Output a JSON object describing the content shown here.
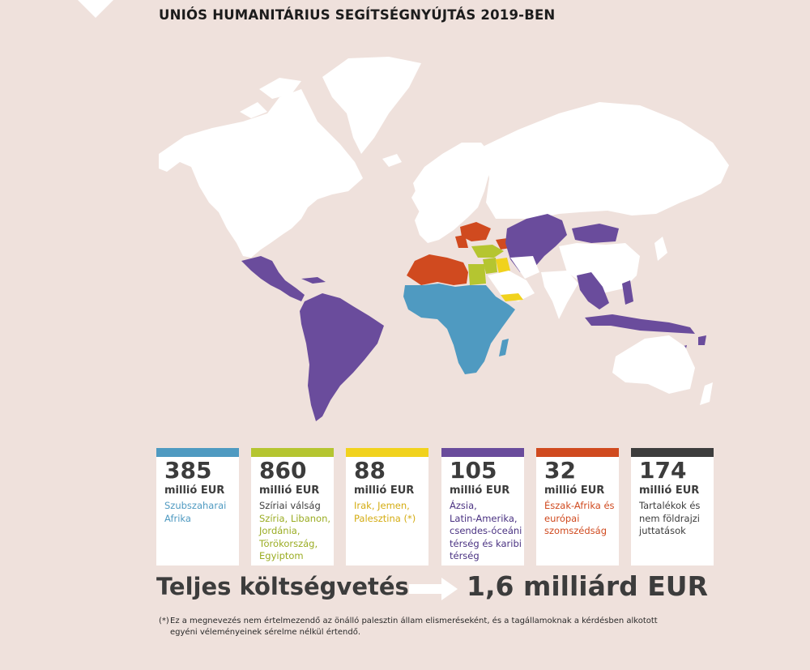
{
  "title": "UNIÓS HUMANITÁRIUS SEGÍTSÉGNYÚJTÁS 2019-BEN",
  "colors": {
    "background": "#efe1dc",
    "land": "#ffffff",
    "sub_saharan_africa": "#4f9ac1",
    "syria_crisis": "#b5c530",
    "iraq_yemen_palestine": "#f1d21d",
    "asia_latam": "#6a4c9c",
    "north_africa_neighbourhood": "#d04a1f",
    "reserves": "#3d3d3d"
  },
  "cards": [
    {
      "value": "385",
      "unit": "millió EUR",
      "color": "#4f9ac1",
      "lines": [
        "Szubszaharai",
        "Afrika"
      ]
    },
    {
      "value": "860",
      "unit": "millió EUR",
      "color": "#b5c530",
      "lines": [
        "Szíriai válság",
        "Szíria, Libanon,",
        "Jordánia,",
        "Törökország,",
        "Egyiptom"
      ]
    },
    {
      "value": "88",
      "unit": "millió EUR",
      "color": "#f1d21d",
      "lines": [
        "Irak, Jemen,",
        "Palesztina (*)"
      ]
    },
    {
      "value": "105",
      "unit": "millió EUR",
      "color": "#6a4c9c",
      "lines": [
        "Ázsia,",
        "Latin-Amerika,",
        "csendes-óceáni",
        "térség és karibi",
        "térség"
      ]
    },
    {
      "value": "32",
      "unit": "millió EUR",
      "color": "#d04a1f",
      "lines": [
        "Észak-Afrika és",
        "európai",
        "szomszédság"
      ]
    },
    {
      "value": "174",
      "unit": "millió EUR",
      "color": "#3d3d3d",
      "lines": [
        "Tartalékok és",
        "nem földrajzi",
        "juttatások"
      ]
    }
  ],
  "total": {
    "label": "Teljes költségvetés",
    "value": "1,6 milliárd EUR"
  },
  "footnote": {
    "mark": "(*)",
    "text": "Ez a megnevezés nem értelmezendő az önálló palesztin állam elismeréseként, és a tagállamoknak a kérdésben alkotott egyéni véleményeinek sérelme nélkül értendő."
  }
}
